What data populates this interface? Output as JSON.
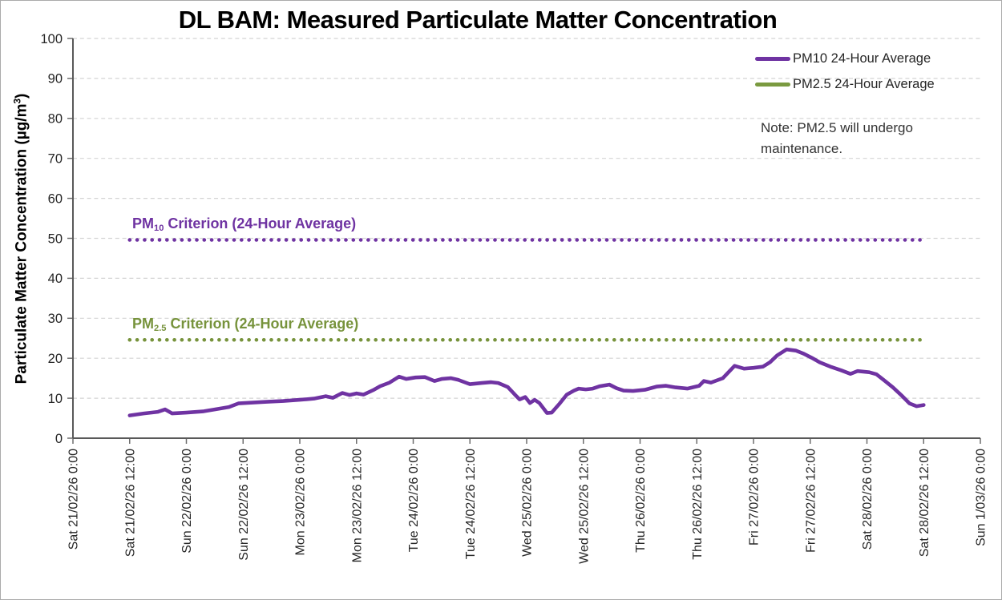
{
  "chart_data": {
    "type": "line",
    "title": "DL BAM: Measured Particulate Matter Concentration",
    "ylabel": {
      "pre": "Particulate Matter Concentration (µg/m",
      "sup": "3",
      "post": ")"
    },
    "ylim": [
      0,
      100
    ],
    "ytick_step": 10,
    "grid": "horizontal-dashed",
    "legend_position": "top-right",
    "x_axis_total_hours": 192,
    "x_ticks": [
      "Sat 21/02/26 0:00",
      "Sat 21/02/26 12:00",
      "Sun 22/02/26 0:00",
      "Sun 22/02/26 12:00",
      "Mon 23/02/26 0:00",
      "Mon 23/02/26 12:00",
      "Tue 24/02/26 0:00",
      "Tue 24/02/26 12:00",
      "Wed 25/02/26 0:00",
      "Wed 25/02/26 12:00",
      "Thu 26/02/26 0:00",
      "Thu 26/02/26 12:00",
      "Fri 27/02/26 0:00",
      "Fri 27/02/26 12:00",
      "Sat 28/02/26 0:00",
      "Sat 28/02/26 12:00",
      "Sun 1/03/26 0:00"
    ],
    "series": [
      {
        "name": "PM10 24-Hour Average",
        "color": "#6F33A2",
        "points": [
          [
            12,
            5.7
          ],
          [
            15,
            6.2
          ],
          [
            18,
            6.6
          ],
          [
            19.5,
            7.2
          ],
          [
            21,
            6.2
          ],
          [
            24,
            6.4
          ],
          [
            27.5,
            6.7
          ],
          [
            30,
            7.2
          ],
          [
            33,
            7.8
          ],
          [
            35,
            8.7
          ],
          [
            38,
            8.9
          ],
          [
            41,
            9.1
          ],
          [
            44.5,
            9.3
          ],
          [
            48,
            9.6
          ],
          [
            51,
            9.9
          ],
          [
            53.5,
            10.5
          ],
          [
            55,
            10.1
          ],
          [
            57,
            11.3
          ],
          [
            58.5,
            10.8
          ],
          [
            60,
            11.2
          ],
          [
            61.5,
            10.9
          ],
          [
            63.5,
            12.0
          ],
          [
            65,
            13.0
          ],
          [
            67,
            13.9
          ],
          [
            69,
            15.4
          ],
          [
            70.5,
            14.8
          ],
          [
            72.5,
            15.2
          ],
          [
            74.5,
            15.3
          ],
          [
            76.5,
            14.3
          ],
          [
            78,
            14.8
          ],
          [
            80,
            15.0
          ],
          [
            81.5,
            14.6
          ],
          [
            84,
            13.5
          ],
          [
            86.5,
            13.8
          ],
          [
            88.5,
            14.0
          ],
          [
            90,
            13.8
          ],
          [
            92,
            12.8
          ],
          [
            93.5,
            10.9
          ],
          [
            94.5,
            9.7
          ],
          [
            95.7,
            10.3
          ],
          [
            96.7,
            8.8
          ],
          [
            97.7,
            9.6
          ],
          [
            98.7,
            8.8
          ],
          [
            100.3,
            6.3
          ],
          [
            101.3,
            6.4
          ],
          [
            103,
            8.7
          ],
          [
            104.5,
            10.9
          ],
          [
            106,
            11.9
          ],
          [
            107,
            12.4
          ],
          [
            108.5,
            12.2
          ],
          [
            110,
            12.4
          ],
          [
            111.5,
            13.0
          ],
          [
            113.5,
            13.4
          ],
          [
            115,
            12.5
          ],
          [
            116.5,
            11.9
          ],
          [
            118.5,
            11.8
          ],
          [
            121,
            12.1
          ],
          [
            123.5,
            12.9
          ],
          [
            125.5,
            13.1
          ],
          [
            127.5,
            12.7
          ],
          [
            130,
            12.4
          ],
          [
            132.5,
            13.1
          ],
          [
            133.5,
            14.3
          ],
          [
            135,
            13.9
          ],
          [
            137.5,
            15.0
          ],
          [
            140,
            18.1
          ],
          [
            142,
            17.4
          ],
          [
            144,
            17.6
          ],
          [
            146,
            17.9
          ],
          [
            147.5,
            19.0
          ],
          [
            149,
            20.7
          ],
          [
            151,
            22.2
          ],
          [
            153,
            21.9
          ],
          [
            154.5,
            21.2
          ],
          [
            156.5,
            20.0
          ],
          [
            158,
            19.0
          ],
          [
            160.5,
            17.8
          ],
          [
            162.5,
            17.0
          ],
          [
            164.5,
            16.1
          ],
          [
            166,
            16.8
          ],
          [
            168.5,
            16.5
          ],
          [
            170,
            16.0
          ],
          [
            171.5,
            14.6
          ],
          [
            173.5,
            12.7
          ],
          [
            175.5,
            10.5
          ],
          [
            177,
            8.7
          ],
          [
            178.5,
            8.0
          ],
          [
            180,
            8.3
          ]
        ]
      },
      {
        "name": "PM2.5 24-Hour Average",
        "color": "#7A9A40",
        "points": []
      }
    ],
    "criterion_lines": [
      {
        "prefix": "PM",
        "sub": "10",
        "rest": " Criterion (24-Hour Average)",
        "value": 50,
        "color": "#6F33A2"
      },
      {
        "prefix": "PM",
        "sub": "2.5",
        "rest": " Criterion (24-Hour Average)",
        "value": 25,
        "color": "#77933C"
      }
    ],
    "note": "Note: PM2.5 will undergo maintenance."
  }
}
